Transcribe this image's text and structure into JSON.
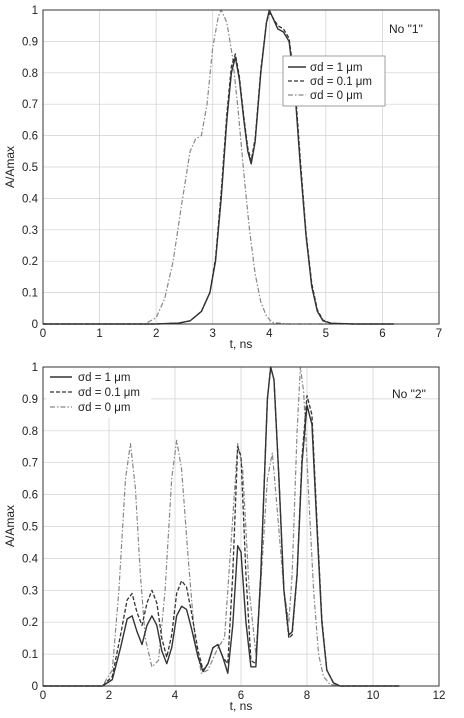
{
  "chart_data": [
    {
      "type": "line",
      "title": "",
      "annotation": "No \"1\"",
      "xlabel": "t, ns",
      "ylabel": "A/Amax",
      "xlim": [
        0,
        7
      ],
      "ylim": [
        0,
        1
      ],
      "xticks": [
        "0",
        "1",
        "2",
        "3",
        "4",
        "5",
        "6",
        "7"
      ],
      "yticks": [
        "0",
        "0.1",
        "0.2",
        "0.3",
        "0.4",
        "0.5",
        "0.6",
        "0.7",
        "0.8",
        "0.9",
        "1"
      ],
      "grid": true,
      "legend_position": "top-right",
      "series": [
        {
          "name": "σd = 1 μm",
          "style": "solid",
          "color": "#333333",
          "points": [
            [
              0,
              0
            ],
            [
              1,
              0
            ],
            [
              2,
              0
            ],
            [
              2.4,
              0.003
            ],
            [
              2.6,
              0.01
            ],
            [
              2.8,
              0.04
            ],
            [
              2.95,
              0.1
            ],
            [
              3.05,
              0.2
            ],
            [
              3.15,
              0.4
            ],
            [
              3.25,
              0.65
            ],
            [
              3.33,
              0.8
            ],
            [
              3.4,
              0.85
            ],
            [
              3.47,
              0.78
            ],
            [
              3.55,
              0.65
            ],
            [
              3.62,
              0.55
            ],
            [
              3.68,
              0.51
            ],
            [
              3.75,
              0.58
            ],
            [
              3.85,
              0.8
            ],
            [
              3.95,
              0.96
            ],
            [
              4.0,
              1.0
            ],
            [
              4.05,
              0.98
            ],
            [
              4.15,
              0.94
            ],
            [
              4.25,
              0.93
            ],
            [
              4.35,
              0.9
            ],
            [
              4.45,
              0.75
            ],
            [
              4.55,
              0.5
            ],
            [
              4.65,
              0.28
            ],
            [
              4.75,
              0.12
            ],
            [
              4.85,
              0.04
            ],
            [
              4.95,
              0.01
            ],
            [
              5.1,
              0.002
            ],
            [
              5.5,
              0
            ],
            [
              6.2,
              0
            ]
          ]
        },
        {
          "name": "σd = 0.1 μm",
          "style": "dashed",
          "color": "#333333",
          "points": [
            [
              0,
              0
            ],
            [
              1,
              0
            ],
            [
              2,
              0
            ],
            [
              2.4,
              0.003
            ],
            [
              2.6,
              0.01
            ],
            [
              2.8,
              0.04
            ],
            [
              2.95,
              0.1
            ],
            [
              3.05,
              0.21
            ],
            [
              3.15,
              0.42
            ],
            [
              3.25,
              0.67
            ],
            [
              3.33,
              0.82
            ],
            [
              3.4,
              0.86
            ],
            [
              3.47,
              0.79
            ],
            [
              3.55,
              0.66
            ],
            [
              3.62,
              0.56
            ],
            [
              3.68,
              0.52
            ],
            [
              3.75,
              0.59
            ],
            [
              3.85,
              0.81
            ],
            [
              3.95,
              0.96
            ],
            [
              4.0,
              0.99
            ],
            [
              4.05,
              0.98
            ],
            [
              4.15,
              0.95
            ],
            [
              4.25,
              0.94
            ],
            [
              4.35,
              0.91
            ],
            [
              4.45,
              0.77
            ],
            [
              4.55,
              0.52
            ],
            [
              4.65,
              0.29
            ],
            [
              4.75,
              0.13
            ],
            [
              4.85,
              0.045
            ],
            [
              4.95,
              0.012
            ],
            [
              5.1,
              0.002
            ],
            [
              5.5,
              0
            ],
            [
              6.2,
              0
            ]
          ]
        },
        {
          "name": "σd = 0 μm",
          "style": "dashdot",
          "color": "#888888",
          "points": [
            [
              0,
              0
            ],
            [
              1,
              0
            ],
            [
              1.8,
              0
            ],
            [
              2.0,
              0.02
            ],
            [
              2.15,
              0.08
            ],
            [
              2.3,
              0.2
            ],
            [
              2.45,
              0.38
            ],
            [
              2.6,
              0.55
            ],
            [
              2.7,
              0.59
            ],
            [
              2.8,
              0.6
            ],
            [
              2.9,
              0.7
            ],
            [
              3.0,
              0.88
            ],
            [
              3.1,
              0.98
            ],
            [
              3.15,
              1.0
            ],
            [
              3.25,
              0.96
            ],
            [
              3.35,
              0.85
            ],
            [
              3.45,
              0.68
            ],
            [
              3.55,
              0.48
            ],
            [
              3.65,
              0.3
            ],
            [
              3.75,
              0.16
            ],
            [
              3.85,
              0.07
            ],
            [
              3.95,
              0.025
            ],
            [
              4.05,
              0.005
            ],
            [
              4.3,
              0
            ],
            [
              6.2,
              0
            ]
          ]
        }
      ]
    },
    {
      "type": "line",
      "title": "",
      "annotation": "No \"2\"",
      "xlabel": "t, ns",
      "ylabel": "A/Amax",
      "xlim": [
        0,
        12
      ],
      "ylim": [
        0,
        1
      ],
      "xticks": [
        "0",
        "2",
        "4",
        "6",
        "8",
        "10",
        "12"
      ],
      "yticks": [
        "0",
        "0.1",
        "0.2",
        "0.3",
        "0.4",
        "0.5",
        "0.6",
        "0.7",
        "0.8",
        "0.9",
        "1"
      ],
      "grid": true,
      "legend_position": "top-left",
      "series": [
        {
          "name": "σd = 1 μm",
          "style": "solid",
          "color": "#333333",
          "points": [
            [
              0,
              0
            ],
            [
              1.8,
              0
            ],
            [
              2.1,
              0.02
            ],
            [
              2.35,
              0.12
            ],
            [
              2.55,
              0.21
            ],
            [
              2.7,
              0.22
            ],
            [
              2.85,
              0.17
            ],
            [
              3.0,
              0.13
            ],
            [
              3.15,
              0.19
            ],
            [
              3.3,
              0.22
            ],
            [
              3.45,
              0.19
            ],
            [
              3.6,
              0.11
            ],
            [
              3.75,
              0.07
            ],
            [
              3.9,
              0.12
            ],
            [
              4.05,
              0.22
            ],
            [
              4.2,
              0.25
            ],
            [
              4.35,
              0.24
            ],
            [
              4.5,
              0.18
            ],
            [
              4.7,
              0.09
            ],
            [
              4.85,
              0.045
            ],
            [
              5.0,
              0.07
            ],
            [
              5.15,
              0.12
            ],
            [
              5.3,
              0.13
            ],
            [
              5.45,
              0.09
            ],
            [
              5.6,
              0.04
            ],
            [
              5.75,
              0.19
            ],
            [
              5.9,
              0.44
            ],
            [
              6.0,
              0.42
            ],
            [
              6.15,
              0.2
            ],
            [
              6.3,
              0.06
            ],
            [
              6.45,
              0.06
            ],
            [
              6.6,
              0.35
            ],
            [
              6.8,
              0.9
            ],
            [
              6.9,
              1.0
            ],
            [
              7.0,
              0.96
            ],
            [
              7.15,
              0.65
            ],
            [
              7.3,
              0.3
            ],
            [
              7.45,
              0.16
            ],
            [
              7.55,
              0.17
            ],
            [
              7.7,
              0.35
            ],
            [
              7.85,
              0.7
            ],
            [
              8.0,
              0.88
            ],
            [
              8.15,
              0.82
            ],
            [
              8.3,
              0.5
            ],
            [
              8.45,
              0.2
            ],
            [
              8.6,
              0.05
            ],
            [
              8.8,
              0.01
            ],
            [
              9.0,
              0
            ],
            [
              10.8,
              0
            ]
          ]
        },
        {
          "name": "σd = 0.1 μm",
          "style": "dashed",
          "color": "#333333",
          "points": [
            [
              0,
              0
            ],
            [
              1.8,
              0
            ],
            [
              2.1,
              0.03
            ],
            [
              2.35,
              0.16
            ],
            [
              2.55,
              0.27
            ],
            [
              2.7,
              0.29
            ],
            [
              2.85,
              0.23
            ],
            [
              3.0,
              0.19
            ],
            [
              3.15,
              0.26
            ],
            [
              3.3,
              0.3
            ],
            [
              3.45,
              0.26
            ],
            [
              3.6,
              0.15
            ],
            [
              3.75,
              0.09
            ],
            [
              3.9,
              0.16
            ],
            [
              4.05,
              0.29
            ],
            [
              4.2,
              0.33
            ],
            [
              4.35,
              0.31
            ],
            [
              4.5,
              0.23
            ],
            [
              4.7,
              0.11
            ],
            [
              4.85,
              0.05
            ],
            [
              5.0,
              0.07
            ],
            [
              5.15,
              0.12
            ],
            [
              5.3,
              0.13
            ],
            [
              5.45,
              0.09
            ],
            [
              5.6,
              0.07
            ],
            [
              5.75,
              0.35
            ],
            [
              5.9,
              0.75
            ],
            [
              6.0,
              0.72
            ],
            [
              6.15,
              0.35
            ],
            [
              6.3,
              0.08
            ],
            [
              6.45,
              0.07
            ],
            [
              6.6,
              0.35
            ],
            [
              6.8,
              0.9
            ],
            [
              6.9,
              1.0
            ],
            [
              7.0,
              0.96
            ],
            [
              7.15,
              0.65
            ],
            [
              7.3,
              0.3
            ],
            [
              7.45,
              0.15
            ],
            [
              7.55,
              0.16
            ],
            [
              7.7,
              0.35
            ],
            [
              7.85,
              0.72
            ],
            [
              8.0,
              0.91
            ],
            [
              8.15,
              0.85
            ],
            [
              8.3,
              0.52
            ],
            [
              8.45,
              0.21
            ],
            [
              8.6,
              0.05
            ],
            [
              8.8,
              0.01
            ],
            [
              9.0,
              0
            ],
            [
              10.8,
              0
            ]
          ]
        },
        {
          "name": "σd = 0 μm",
          "style": "dashdot",
          "color": "#888888",
          "points": [
            [
              0,
              0
            ],
            [
              1.8,
              0
            ],
            [
              2.1,
              0.05
            ],
            [
              2.3,
              0.3
            ],
            [
              2.5,
              0.65
            ],
            [
              2.65,
              0.76
            ],
            [
              2.8,
              0.62
            ],
            [
              2.95,
              0.35
            ],
            [
              3.1,
              0.15
            ],
            [
              3.3,
              0.06
            ],
            [
              3.5,
              0.08
            ],
            [
              3.7,
              0.3
            ],
            [
              3.9,
              0.65
            ],
            [
              4.05,
              0.77
            ],
            [
              4.2,
              0.68
            ],
            [
              4.4,
              0.4
            ],
            [
              4.6,
              0.15
            ],
            [
              4.8,
              0.04
            ],
            [
              5.0,
              0.05
            ],
            [
              5.3,
              0.12
            ],
            [
              5.5,
              0.15
            ],
            [
              5.7,
              0.45
            ],
            [
              5.9,
              0.76
            ],
            [
              6.05,
              0.68
            ],
            [
              6.25,
              0.3
            ],
            [
              6.45,
              0.1
            ],
            [
              6.6,
              0.32
            ],
            [
              6.8,
              0.65
            ],
            [
              6.95,
              0.73
            ],
            [
              7.1,
              0.55
            ],
            [
              7.3,
              0.3
            ],
            [
              7.45,
              0.2
            ],
            [
              7.55,
              0.35
            ],
            [
              7.7,
              0.8
            ],
            [
              7.8,
              1.0
            ],
            [
              7.9,
              0.92
            ],
            [
              8.05,
              0.6
            ],
            [
              8.2,
              0.3
            ],
            [
              8.35,
              0.1
            ],
            [
              8.5,
              0.03
            ],
            [
              8.7,
              0.005
            ],
            [
              9.0,
              0
            ],
            [
              10.8,
              0
            ]
          ]
        }
      ]
    }
  ]
}
